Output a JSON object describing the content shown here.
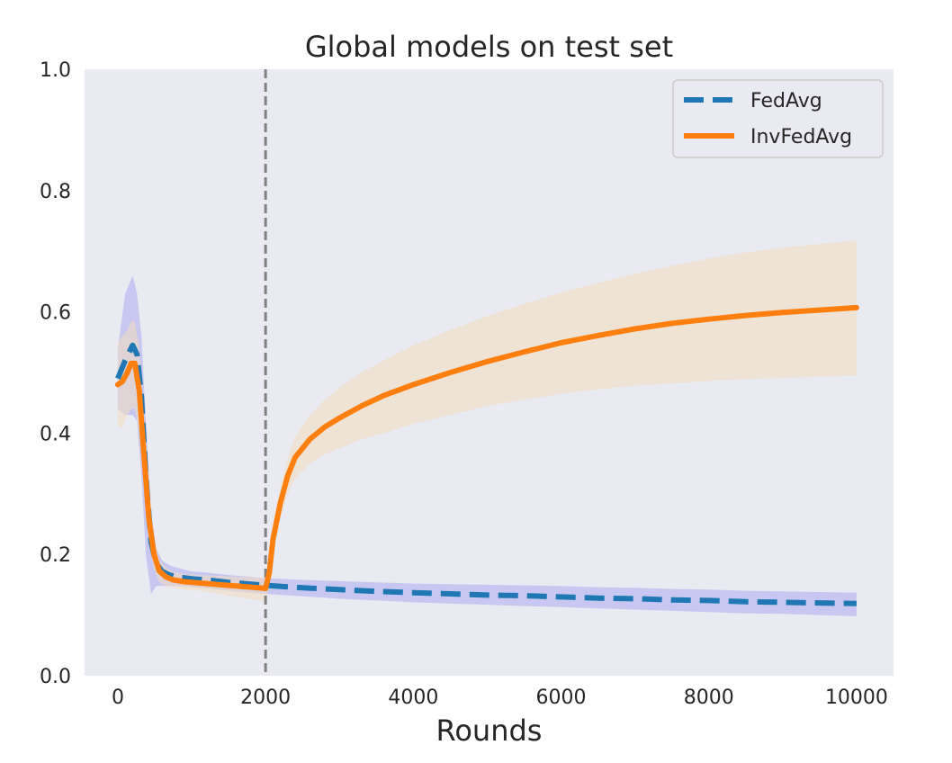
{
  "chart_data": {
    "type": "line",
    "title": "Global models on test set",
    "xlabel": "Rounds",
    "ylabel": "",
    "xlim": [
      -450,
      10500
    ],
    "ylim": [
      0.0,
      1.0
    ],
    "xticks": [
      0,
      2000,
      4000,
      6000,
      8000,
      10000
    ],
    "yticks": [
      0.0,
      0.2,
      0.4,
      0.6,
      0.8,
      1.0
    ],
    "xtick_labels": [
      "0",
      "2000",
      "4000",
      "6000",
      "8000",
      "10000"
    ],
    "ytick_labels": [
      "0.0",
      "0.2",
      "0.4",
      "0.6",
      "0.8",
      "1.0"
    ],
    "grid": false,
    "legend_position": "top-right",
    "vline_x": 2000,
    "colors": {
      "plot_background": "#eaeaf2",
      "fedavg": "#1f77b4",
      "invfedavg": "#ff7f0e",
      "fedavg_band": "#b4b4f0",
      "invfedavg_band": "#f3dcc0",
      "vline": "#808080"
    },
    "series": [
      {
        "name": "FedAvg",
        "style": "dashed",
        "x": [
          0,
          100,
          200,
          260,
          320,
          380,
          450,
          520,
          600,
          700,
          800,
          1000,
          1200,
          1500,
          1800,
          2000,
          2500,
          3000,
          3500,
          4000,
          4500,
          5000,
          5500,
          6000,
          6500,
          7000,
          7500,
          8000,
          8500,
          9000,
          9500,
          10000
        ],
        "y": [
          0.49,
          0.52,
          0.545,
          0.53,
          0.46,
          0.33,
          0.22,
          0.185,
          0.172,
          0.166,
          0.163,
          0.16,
          0.158,
          0.154,
          0.151,
          0.149,
          0.145,
          0.142,
          0.139,
          0.137,
          0.135,
          0.133,
          0.132,
          0.13,
          0.128,
          0.127,
          0.125,
          0.124,
          0.122,
          0.121,
          0.12,
          0.119
        ],
        "lower": [
          0.44,
          0.43,
          0.43,
          0.42,
          0.33,
          0.2,
          0.135,
          0.148,
          0.148,
          0.148,
          0.148,
          0.146,
          0.144,
          0.14,
          0.137,
          0.135,
          0.131,
          0.127,
          0.124,
          0.121,
          0.119,
          0.117,
          0.115,
          0.113,
          0.111,
          0.109,
          0.107,
          0.105,
          0.103,
          0.102,
          0.1,
          0.098
        ],
        "upper": [
          0.54,
          0.63,
          0.66,
          0.63,
          0.56,
          0.42,
          0.27,
          0.21,
          0.19,
          0.182,
          0.178,
          0.172,
          0.17,
          0.166,
          0.163,
          0.161,
          0.158,
          0.156,
          0.154,
          0.152,
          0.151,
          0.15,
          0.149,
          0.148,
          0.146,
          0.145,
          0.143,
          0.142,
          0.14,
          0.139,
          0.138,
          0.137
        ]
      },
      {
        "name": "InvFedAvg",
        "style": "solid",
        "x": [
          0,
          60,
          130,
          180,
          230,
          290,
          350,
          420,
          490,
          560,
          650,
          750,
          900,
          1100,
          1300,
          1500,
          1700,
          1900,
          2000,
          2050,
          2100,
          2200,
          2300,
          2400,
          2600,
          2800,
          3000,
          3300,
          3600,
          4000,
          4500,
          5000,
          5500,
          6000,
          6500,
          7000,
          7500,
          8000,
          8500,
          9000,
          9500,
          10000
        ],
        "y": [
          0.48,
          0.485,
          0.5,
          0.515,
          0.515,
          0.47,
          0.37,
          0.26,
          0.2,
          0.173,
          0.163,
          0.158,
          0.155,
          0.153,
          0.151,
          0.149,
          0.147,
          0.145,
          0.144,
          0.17,
          0.225,
          0.285,
          0.33,
          0.36,
          0.39,
          0.41,
          0.425,
          0.445,
          0.462,
          0.48,
          0.5,
          0.518,
          0.534,
          0.549,
          0.561,
          0.572,
          0.581,
          0.588,
          0.594,
          0.599,
          0.603,
          0.607
        ],
        "lower": [
          0.41,
          0.41,
          0.43,
          0.44,
          0.44,
          0.4,
          0.32,
          0.22,
          0.175,
          0.155,
          0.148,
          0.145,
          0.142,
          0.14,
          0.136,
          0.132,
          0.128,
          0.124,
          0.122,
          0.15,
          0.2,
          0.26,
          0.3,
          0.325,
          0.35,
          0.365,
          0.375,
          0.39,
          0.4,
          0.415,
          0.43,
          0.445,
          0.455,
          0.465,
          0.472,
          0.478,
          0.482,
          0.486,
          0.489,
          0.491,
          0.493,
          0.495
        ],
        "upper": [
          0.55,
          0.56,
          0.57,
          0.585,
          0.585,
          0.54,
          0.42,
          0.3,
          0.225,
          0.19,
          0.178,
          0.172,
          0.168,
          0.166,
          0.165,
          0.164,
          0.163,
          0.162,
          0.161,
          0.19,
          0.25,
          0.31,
          0.36,
          0.395,
          0.43,
          0.455,
          0.475,
          0.5,
          0.52,
          0.545,
          0.57,
          0.593,
          0.613,
          0.632,
          0.648,
          0.663,
          0.676,
          0.688,
          0.698,
          0.706,
          0.712,
          0.718
        ]
      }
    ]
  }
}
